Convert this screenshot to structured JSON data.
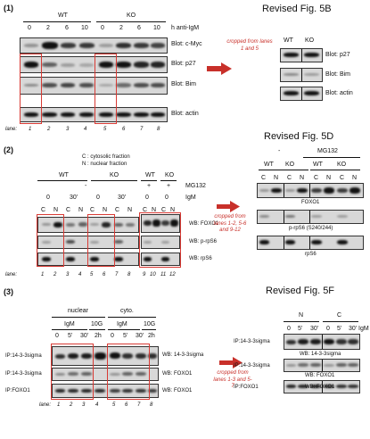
{
  "s1": {
    "section_label": "(1)",
    "revised_title": "Revised Fig. 5B",
    "left": {
      "group_labels": [
        "WT",
        "KO"
      ],
      "timepoints": [
        "0",
        "2",
        "6",
        "10",
        "0",
        "2",
        "6",
        "10"
      ],
      "time_unit": "h anti-IgM",
      "blots": [
        "Blot: c-Myc",
        "Blot: p27",
        "Blot: Bim",
        "Blot: actin"
      ],
      "lane_label": "lane:",
      "lanes": [
        "1",
        "2",
        "3",
        "4",
        "5",
        "6",
        "7",
        "8"
      ]
    },
    "note": "cropped from lanes 1 and 5",
    "right": {
      "group_labels": [
        "WT",
        "KO"
      ],
      "blots": [
        "Blot: p27",
        "Blot: Bim",
        "Blot: actin"
      ]
    }
  },
  "s2": {
    "section_label": "(2)",
    "revised_title": "Revised Fig. 5D",
    "legend_c": "C : cytosolic fraction",
    "legend_n": "N : nuclear fraction",
    "left": {
      "group_labels": [
        "WT",
        "KO",
        "WT",
        "KO"
      ],
      "mg132_label": "MG132",
      "mg132_values": [
        "-",
        "+",
        "+"
      ],
      "igm_label": "IgM",
      "igm_values": [
        "0",
        "30'",
        "0",
        "30'",
        "0",
        "0"
      ],
      "fractions": [
        "C",
        "N",
        "C",
        "N",
        "C",
        "N",
        "C",
        "N",
        "C",
        "N",
        "C",
        "N"
      ],
      "blots": [
        "WB: FOXO1",
        "WB: p-rpS6",
        "WB: rpS6"
      ],
      "lane_label": "lane:",
      "lanes": [
        "1",
        "2",
        "3",
        "4",
        "5",
        "6",
        "7",
        "8",
        "9",
        "10",
        "11",
        "12"
      ]
    },
    "note": "cropped from lanes 1-2, 5-6 and 9-12",
    "right": {
      "mg132_minus": "-",
      "mg132_label": "MG132",
      "group_labels": [
        "WT",
        "KO",
        "WT",
        "KO"
      ],
      "fractions": [
        "C",
        "N",
        "C",
        "N",
        "C",
        "N",
        "C",
        "N"
      ],
      "blots": [
        "FOXO1",
        "p-rpS6 (S240/244)",
        "rpS6"
      ]
    }
  },
  "s3": {
    "section_label": "(3)",
    "revised_title": "Revised Fig. 5F",
    "left": {
      "groups": [
        "nuclear",
        "cyto."
      ],
      "sub_groups": [
        "IgM",
        "10G",
        "IgM",
        "10G"
      ],
      "timepoints": [
        "0",
        "5'",
        "30'",
        "2h",
        "0",
        "5'",
        "30'",
        "2h"
      ],
      "ip_labels": [
        "IP:14-3-3sigma",
        "IP:14-3-3sigma",
        "IP:FOXO1"
      ],
      "wb_labels": [
        "WB: 14-3-3sigma",
        "WB: FOXO1",
        "WB: FOXO1"
      ],
      "lane_label": "lane:",
      "lanes": [
        "1",
        "2",
        "3",
        "4",
        "5",
        "6",
        "7",
        "8"
      ]
    },
    "note": "cropped from lanes 1-3 and 5-7",
    "right": {
      "groups": [
        "N",
        "C"
      ],
      "timepoints": [
        "0",
        "5'",
        "30'",
        "0",
        "5'",
        "30'"
      ],
      "time_unit": "IgM",
      "ip_labels": [
        "IP:14-3-3sigma",
        "IP:14-3-3sigma",
        "IP:FOXO1"
      ],
      "wb_labels": [
        "WB: 14-3-3sigma",
        "WB: FOXO1",
        "WB: FOXO1"
      ]
    }
  },
  "colors": {
    "accent_red": "#c8302a",
    "box_red": "#d83a34",
    "band": "#111111",
    "membrane": "#d8d8d8"
  }
}
